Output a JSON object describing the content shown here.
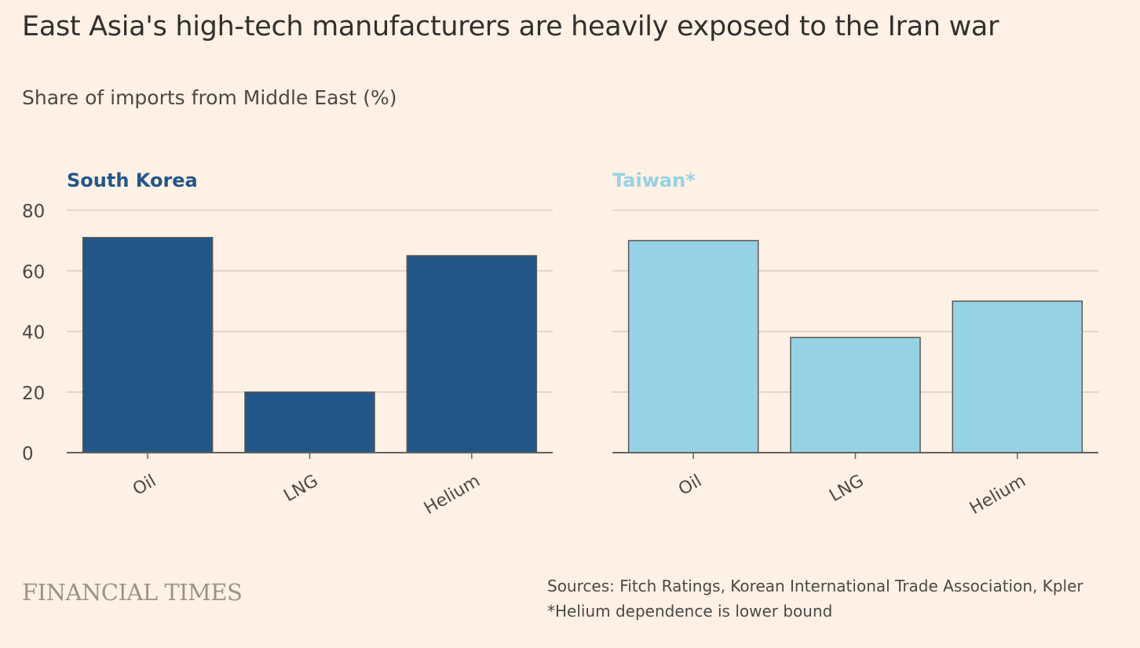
{
  "title": "East Asia's high-tech manufacturers are heavily exposed to the Iran war",
  "subtitle": "Share of imports from Middle East (%)",
  "brand": "FINANCIAL TIMES",
  "sources": "Sources: Fitch Ratings, Korean International Trade Association, Kpler",
  "footnote": "*Helium dependence is lower bound",
  "colors": {
    "south_korea": "#235688",
    "taiwan": "#96d2e4",
    "grid": "#d9ccc3",
    "axis": "#66605c",
    "bar_border": "#5c5856"
  },
  "chart_data": [
    {
      "type": "bar",
      "title": "South Korea",
      "categories": [
        "Oil",
        "LNG",
        "Helium"
      ],
      "values": [
        71,
        20,
        65
      ],
      "ylabel": "Share of imports from Middle East (%)",
      "ylim": [
        0,
        80
      ],
      "yticks": [
        "0",
        "20",
        "40",
        "60",
        "80"
      ],
      "grid": true
    },
    {
      "type": "bar",
      "title": "Taiwan*",
      "categories": [
        "Oil",
        "LNG",
        "Helium"
      ],
      "values": [
        70,
        38,
        50
      ],
      "ylabel": "Share of imports from Middle East (%)",
      "ylim": [
        0,
        80
      ],
      "yticks": [
        "0",
        "20",
        "40",
        "60",
        "80"
      ],
      "grid": true
    }
  ]
}
